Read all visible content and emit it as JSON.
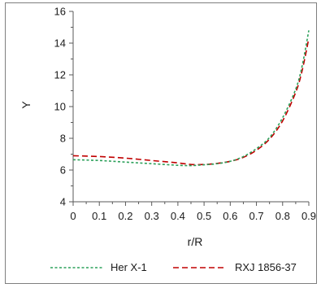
{
  "chart_data": {
    "type": "line",
    "title": "",
    "xlabel": "r/R",
    "ylabel": "Y",
    "xlim": [
      0,
      0.9
    ],
    "ylim": [
      4,
      16
    ],
    "xticks": [
      "0",
      "0.1",
      "0.2",
      "0.3",
      "0.4",
      "0.5",
      "0.6",
      "0.7",
      "0.8",
      "0.9"
    ],
    "yticks": [
      "4",
      "6",
      "8",
      "10",
      "12",
      "14",
      "16"
    ],
    "grid": false,
    "legend_position": "bottom",
    "series": [
      {
        "name": "Her X-1",
        "color": "#2ca05a",
        "dash": "dotted",
        "x": [
          0,
          0.1,
          0.2,
          0.3,
          0.4,
          0.45,
          0.5,
          0.55,
          0.6,
          0.65,
          0.7,
          0.75,
          0.8,
          0.85,
          0.875,
          0.9
        ],
        "y": [
          6.65,
          6.6,
          6.5,
          6.4,
          6.3,
          6.28,
          6.33,
          6.4,
          6.55,
          6.85,
          7.35,
          8.05,
          9.3,
          11.1,
          12.6,
          14.8
        ]
      },
      {
        "name": "RXJ 1856-37",
        "color": "#c00000",
        "dash": "dashed",
        "x": [
          0,
          0.1,
          0.2,
          0.3,
          0.4,
          0.45,
          0.5,
          0.55,
          0.6,
          0.65,
          0.7,
          0.75,
          0.8,
          0.85,
          0.875,
          0.9
        ],
        "y": [
          6.9,
          6.85,
          6.75,
          6.6,
          6.45,
          6.35,
          6.35,
          6.42,
          6.55,
          6.8,
          7.25,
          7.95,
          9.1,
          10.9,
          12.3,
          14.3
        ]
      }
    ]
  }
}
